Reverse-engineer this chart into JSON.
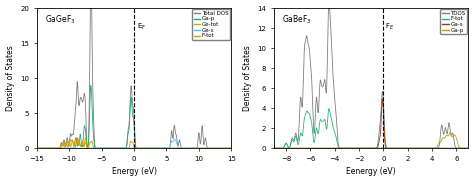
{
  "left": {
    "title": "GaGeF$_3$",
    "xlabel": "Energy (eV)",
    "ylabel": "Density of States",
    "xlim": [
      -15,
      15
    ],
    "ylim": [
      0,
      20
    ],
    "yticks": [
      0,
      5,
      10,
      15,
      20
    ],
    "ef_x": 0.0,
    "ef_label": "E$_F$",
    "legend": [
      "Total DOS",
      "Ga-p",
      "Ge-tot",
      "Ge-s",
      "F-tot"
    ],
    "colors": [
      "#7f7f7f",
      "#26a679",
      "#d4a017",
      "#4cc9f0",
      "#c8a000"
    ]
  },
  "right": {
    "title": "GaBeF$_3$",
    "xlabel": "Eenergy (eV)",
    "ylabel": "Density of States",
    "xlim": [
      -9,
      7
    ],
    "ylim": [
      0,
      14
    ],
    "yticks": [
      0,
      2,
      4,
      6,
      8,
      10,
      12,
      14
    ],
    "ef_x": 0.0,
    "ef_label": "F$_E$",
    "legend": [
      "TDOS",
      "F-tot",
      "Ga-s",
      "Ga-p"
    ],
    "colors": [
      "#7f7f7f",
      "#26b87a",
      "#8b4010",
      "#b8a010"
    ]
  }
}
